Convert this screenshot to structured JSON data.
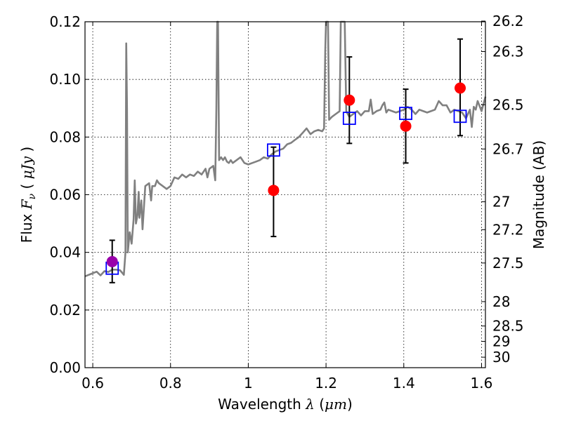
{
  "chart_data": {
    "type": "scatter",
    "title": "",
    "xlabel": "Wavelength  λ (μm)",
    "ylabel": "Flux  F_ν  ( μJy )",
    "ylabel_parts": {
      "prefix": "Flux  ",
      "symbol": "F",
      "subscript": "ν",
      "open": "  ( ",
      "unit": "μJy",
      "close": " )"
    },
    "xlabel_parts": {
      "prefix": "Wavelength  ",
      "symbol": "λ",
      "open": " (",
      "unit": "μm",
      "close": ")"
    },
    "y2label": "Magnitude (AB)",
    "xlim": [
      0.58,
      1.61
    ],
    "ylim": [
      0.0,
      0.12
    ],
    "grid": true,
    "x_ticks": [
      0.6,
      0.8,
      1.0,
      1.2,
      1.4,
      1.6
    ],
    "x_tick_labels": [
      "0.6",
      "0.8",
      "1",
      "1.2",
      "1.4",
      "1.6"
    ],
    "y_ticks": [
      0.0,
      0.02,
      0.04,
      0.06,
      0.08,
      0.1,
      0.12
    ],
    "y_tick_labels": [
      "0.00",
      "0.02",
      "0.04",
      "0.06",
      "0.08",
      "0.10",
      "0.12"
    ],
    "y2_ticks": [
      26.2,
      26.3,
      26.5,
      26.7,
      27,
      27.2,
      27.5,
      28,
      28.5,
      29,
      30
    ],
    "y2_tick_labels": [
      "26.2",
      "26.3",
      "26.5",
      "26.7",
      "27",
      "27.2",
      "27.5",
      "28",
      "28.5",
      "29",
      "30"
    ],
    "colors": {
      "model": "#808080",
      "observed": "#ff0000",
      "observed_special": "#9900aa",
      "synthetic": "#0000ff",
      "errorbar": "#000000"
    },
    "series": [
      {
        "type": "line",
        "points": [
          [
            0.58,
            0.0317
          ],
          [
            0.595,
            0.0325
          ],
          [
            0.61,
            0.0333
          ],
          [
            0.62,
            0.032
          ],
          [
            0.63,
            0.0335
          ],
          [
            0.64,
            0.0332
          ],
          [
            0.65,
            0.034
          ],
          [
            0.66,
            0.034
          ],
          [
            0.67,
            0.0338
          ],
          [
            0.675,
            0.033
          ],
          [
            0.68,
            0.0322
          ],
          [
            0.684,
            0.04
          ],
          [
            0.686,
            0.1125
          ],
          [
            0.688,
            0.09
          ],
          [
            0.69,
            0.04
          ],
          [
            0.695,
            0.047
          ],
          [
            0.7,
            0.043
          ],
          [
            0.705,
            0.0515
          ],
          [
            0.708,
            0.065
          ],
          [
            0.711,
            0.05
          ],
          [
            0.715,
            0.053
          ],
          [
            0.718,
            0.061
          ],
          [
            0.72,
            0.052
          ],
          [
            0.725,
            0.058
          ],
          [
            0.728,
            0.048
          ],
          [
            0.735,
            0.063
          ],
          [
            0.745,
            0.064
          ],
          [
            0.75,
            0.058
          ],
          [
            0.753,
            0.063
          ],
          [
            0.76,
            0.063
          ],
          [
            0.765,
            0.065
          ],
          [
            0.77,
            0.064
          ],
          [
            0.78,
            0.063
          ],
          [
            0.79,
            0.062
          ],
          [
            0.8,
            0.063
          ],
          [
            0.81,
            0.066
          ],
          [
            0.82,
            0.0655
          ],
          [
            0.83,
            0.067
          ],
          [
            0.84,
            0.066
          ],
          [
            0.85,
            0.067
          ],
          [
            0.86,
            0.0665
          ],
          [
            0.87,
            0.068
          ],
          [
            0.88,
            0.067
          ],
          [
            0.89,
            0.069
          ],
          [
            0.895,
            0.066
          ],
          [
            0.9,
            0.069
          ],
          [
            0.91,
            0.07
          ],
          [
            0.915,
            0.065
          ],
          [
            0.918,
            0.09
          ],
          [
            0.92,
            0.12
          ],
          [
            0.922,
            0.12
          ],
          [
            0.925,
            0.072
          ],
          [
            0.93,
            0.073
          ],
          [
            0.935,
            0.072
          ],
          [
            0.94,
            0.073
          ],
          [
            0.945,
            0.0715
          ],
          [
            0.95,
            0.071
          ],
          [
            0.955,
            0.072
          ],
          [
            0.96,
            0.071
          ],
          [
            0.97,
            0.072
          ],
          [
            0.98,
            0.073
          ],
          [
            0.99,
            0.071
          ],
          [
            1.0,
            0.0705
          ],
          [
            1.01,
            0.071
          ],
          [
            1.02,
            0.0715
          ],
          [
            1.03,
            0.072
          ],
          [
            1.04,
            0.073
          ],
          [
            1.05,
            0.0725
          ],
          [
            1.06,
            0.074
          ],
          [
            1.07,
            0.075
          ],
          [
            1.08,
            0.0755
          ],
          [
            1.09,
            0.076
          ],
          [
            1.1,
            0.0775
          ],
          [
            1.11,
            0.078
          ],
          [
            1.12,
            0.079
          ],
          [
            1.13,
            0.08
          ],
          [
            1.14,
            0.0815
          ],
          [
            1.15,
            0.083
          ],
          [
            1.16,
            0.081
          ],
          [
            1.17,
            0.082
          ],
          [
            1.18,
            0.0825
          ],
          [
            1.19,
            0.082
          ],
          [
            1.195,
            0.083
          ],
          [
            1.198,
            0.11
          ],
          [
            1.2,
            0.12
          ],
          [
            1.205,
            0.12
          ],
          [
            1.208,
            0.086
          ],
          [
            1.215,
            0.087
          ],
          [
            1.225,
            0.088
          ],
          [
            1.235,
            0.089
          ],
          [
            1.238,
            0.12
          ],
          [
            1.248,
            0.12
          ],
          [
            1.252,
            0.089
          ],
          [
            1.26,
            0.087
          ],
          [
            1.27,
            0.088
          ],
          [
            1.28,
            0.089
          ],
          [
            1.29,
            0.0875
          ],
          [
            1.3,
            0.089
          ],
          [
            1.31,
            0.089
          ],
          [
            1.315,
            0.093
          ],
          [
            1.32,
            0.088
          ],
          [
            1.33,
            0.089
          ],
          [
            1.34,
            0.0895
          ],
          [
            1.345,
            0.091
          ],
          [
            1.35,
            0.092
          ],
          [
            1.355,
            0.0885
          ],
          [
            1.36,
            0.0895
          ],
          [
            1.37,
            0.089
          ],
          [
            1.38,
            0.0885
          ],
          [
            1.39,
            0.089
          ],
          [
            1.4,
            0.0895
          ],
          [
            1.41,
            0.0905
          ],
          [
            1.42,
            0.0895
          ],
          [
            1.43,
            0.088
          ],
          [
            1.44,
            0.0895
          ],
          [
            1.45,
            0.089
          ],
          [
            1.46,
            0.0885
          ],
          [
            1.47,
            0.089
          ],
          [
            1.48,
            0.0895
          ],
          [
            1.49,
            0.0925
          ],
          [
            1.5,
            0.091
          ],
          [
            1.51,
            0.091
          ],
          [
            1.52,
            0.0885
          ],
          [
            1.53,
            0.0895
          ],
          [
            1.54,
            0.089
          ],
          [
            1.55,
            0.0885
          ],
          [
            1.56,
            0.0865
          ],
          [
            1.57,
            0.0895
          ],
          [
            1.575,
            0.0835
          ],
          [
            1.58,
            0.0905
          ],
          [
            1.585,
            0.0895
          ],
          [
            1.59,
            0.0925
          ],
          [
            1.6,
            0.089
          ],
          [
            1.61,
            0.094
          ]
        ]
      },
      {
        "type": "errorbar",
        "points": [
          {
            "x": 0.65,
            "y": 0.0368,
            "yerr": [
              0.0295,
              0.0442
            ],
            "special": true
          },
          {
            "x": 1.065,
            "y": 0.0615,
            "yerr": [
              0.0455,
              0.0765
            ],
            "special": false
          },
          {
            "x": 1.26,
            "y": 0.0928,
            "yerr": [
              0.0778,
              0.1078
            ],
            "special": false
          },
          {
            "x": 1.405,
            "y": 0.0838,
            "yerr": [
              0.071,
              0.0966
            ],
            "special": false
          },
          {
            "x": 1.545,
            "y": 0.097,
            "yerr": [
              0.0805,
              0.114
            ],
            "special": false
          }
        ]
      },
      {
        "type": "scatter",
        "marker": "square",
        "points": [
          {
            "x": 0.65,
            "y": 0.0345
          },
          {
            "x": 1.065,
            "y": 0.0755
          },
          {
            "x": 1.26,
            "y": 0.0865
          },
          {
            "x": 1.405,
            "y": 0.0882
          },
          {
            "x": 1.545,
            "y": 0.0872
          }
        ]
      }
    ]
  }
}
